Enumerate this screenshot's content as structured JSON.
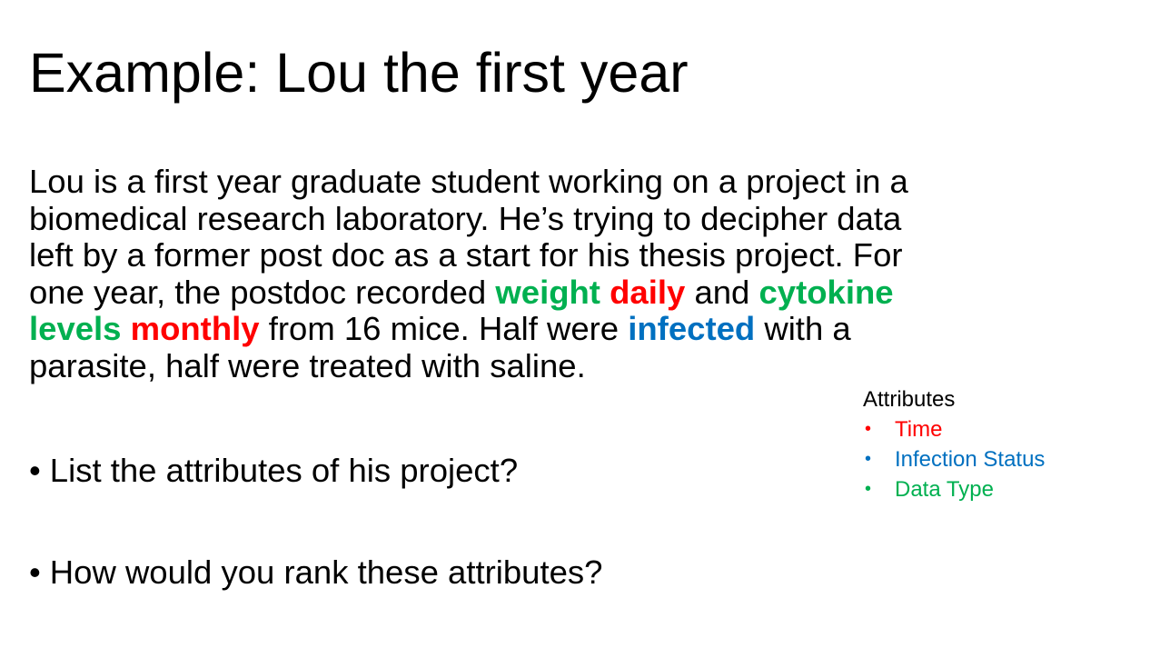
{
  "slide": {
    "title": "Example: Lou the first year",
    "paragraph": {
      "line1": "Lou is a first year graduate student working on a project in a",
      "line2": "biomedical research laboratory. He’s trying to decipher data",
      "line3": "left by a former post doc as a start for his thesis project. For",
      "line4_a": "one year, the postdoc recorded ",
      "line4_weight": "weight",
      "line4_sp1": " ",
      "line4_daily": "daily",
      "line4_b": " and ",
      "line4_cytokine": "cytokine",
      "line5_levels": "levels",
      "line5_sp1": " ",
      "line5_monthly": "monthly",
      "line5_a": " from 16 mice. Half were ",
      "line5_infected": "infected",
      "line5_b": " with a",
      "line6": "parasite, half were treated with saline."
    },
    "questions": [
      {
        "bullet": "•",
        "text": "List the attributes of his project?"
      },
      {
        "bullet": "•",
        "text": "How would you rank these attributes?"
      }
    ],
    "attributes": {
      "heading": "Attributes",
      "items": [
        {
          "bullet": "•",
          "label": "Time",
          "color": "#ff0000"
        },
        {
          "bullet": "•",
          "label": "Infection Status",
          "color": "#0070c0"
        },
        {
          "bullet": "•",
          "label": "Data Type",
          "color": "#00b050"
        }
      ]
    },
    "colors": {
      "green": "#00b050",
      "red": "#ff0000",
      "blue": "#0070c0"
    }
  }
}
